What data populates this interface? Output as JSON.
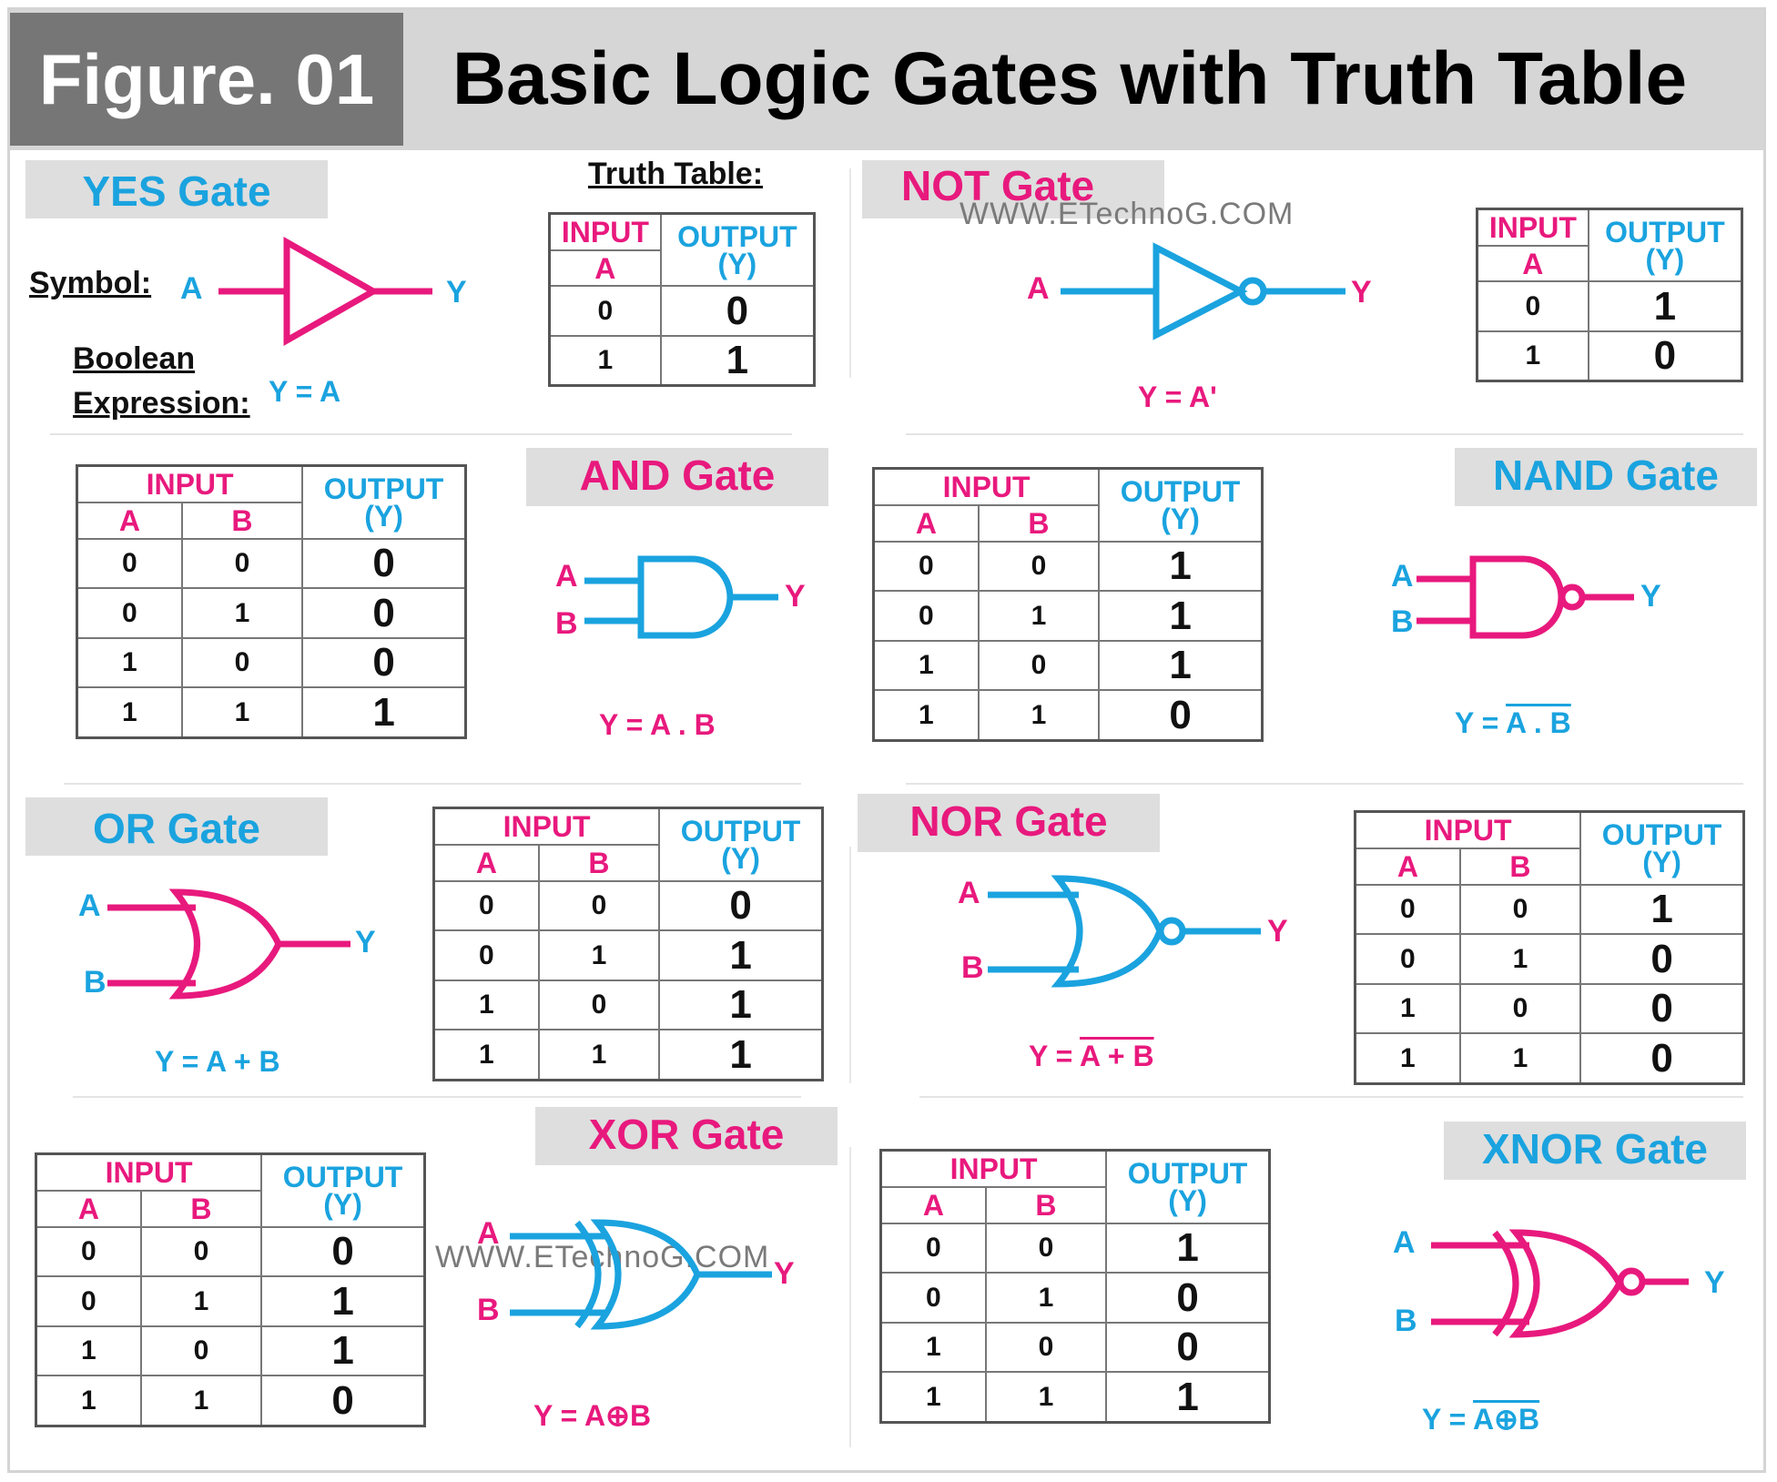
{
  "header": {
    "figure_label": "Figure. 01",
    "title": "Basic Logic Gates with Truth Table"
  },
  "watermark": "WWW.ETechnoG.COM",
  "colors": {
    "pink": "#e8197d",
    "blue": "#1aa3df",
    "header_bg": "#d6d6d6",
    "figure_bg": "#767676"
  },
  "legend": {
    "truth_table": "Truth Table:",
    "symbol": "Symbol:",
    "boolean_line1": "Boolean",
    "boolean_line2": "Expression:"
  },
  "labels": {
    "input": "INPUT",
    "output": "OUTPUT",
    "output_y": "(Y)",
    "a": "A",
    "b": "B",
    "y": "Y"
  },
  "gates": {
    "yes": {
      "name": "YES Gate",
      "expr": "Y = A",
      "rows": [
        [
          "0",
          "0"
        ],
        [
          "1",
          "1"
        ]
      ]
    },
    "not": {
      "name": "NOT Gate",
      "expr": "Y = A'",
      "rows": [
        [
          "0",
          "1"
        ],
        [
          "1",
          "0"
        ]
      ]
    },
    "and": {
      "name": "AND Gate",
      "expr": "Y = A . B",
      "rows": [
        [
          "0",
          "0",
          "0"
        ],
        [
          "0",
          "1",
          "0"
        ],
        [
          "1",
          "0",
          "0"
        ],
        [
          "1",
          "1",
          "1"
        ]
      ]
    },
    "nand": {
      "name": "NAND Gate",
      "expr_prefix": "Y = ",
      "expr_bar": "A . B",
      "rows": [
        [
          "0",
          "0",
          "1"
        ],
        [
          "0",
          "1",
          "1"
        ],
        [
          "1",
          "0",
          "1"
        ],
        [
          "1",
          "1",
          "0"
        ]
      ]
    },
    "or": {
      "name": "OR Gate",
      "expr": "Y = A + B",
      "rows": [
        [
          "0",
          "0",
          "0"
        ],
        [
          "0",
          "1",
          "1"
        ],
        [
          "1",
          "0",
          "1"
        ],
        [
          "1",
          "1",
          "1"
        ]
      ]
    },
    "nor": {
      "name": "NOR Gate",
      "expr_prefix": "Y = ",
      "expr_bar": "A + B",
      "rows": [
        [
          "0",
          "0",
          "1"
        ],
        [
          "0",
          "1",
          "0"
        ],
        [
          "1",
          "0",
          "0"
        ],
        [
          "1",
          "1",
          "0"
        ]
      ]
    },
    "xor": {
      "name": "XOR Gate",
      "expr": "Y = A⊕B",
      "rows": [
        [
          "0",
          "0",
          "0"
        ],
        [
          "0",
          "1",
          "1"
        ],
        [
          "1",
          "0",
          "1"
        ],
        [
          "1",
          "1",
          "0"
        ]
      ]
    },
    "xnor": {
      "name": "XNOR Gate",
      "expr_prefix": "Y = ",
      "expr_bar": "A⊕B",
      "rows": [
        [
          "0",
          "0",
          "1"
        ],
        [
          "0",
          "1",
          "0"
        ],
        [
          "1",
          "0",
          "0"
        ],
        [
          "1",
          "1",
          "1"
        ]
      ]
    }
  }
}
